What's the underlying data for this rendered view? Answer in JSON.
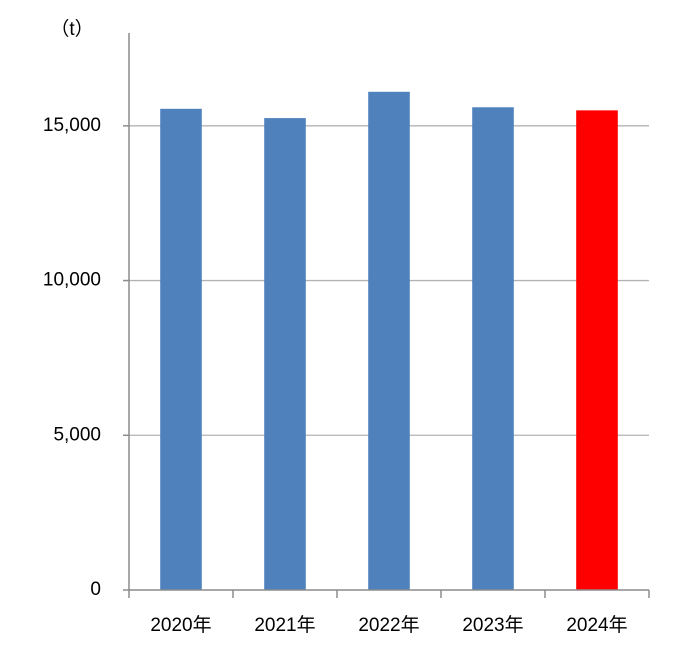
{
  "chart_data": {
    "type": "bar",
    "y_label": "（t）",
    "categories": [
      "2020年",
      "2021年",
      "2022年",
      "2023年",
      "2024年"
    ],
    "values": [
      15550,
      15250,
      16100,
      15600,
      15500
    ],
    "colors": [
      "#4f81bd",
      "#4f81bd",
      "#4f81bd",
      "#4f81bd",
      "#ff0000"
    ],
    "ylim": [
      0,
      18000
    ],
    "yticks": [
      0,
      {
        "value": 5000,
        "label": "5,000"
      },
      {
        "value": 10000,
        "label": "10,000"
      },
      {
        "value": 15000,
        "label": "15,000"
      }
    ],
    "grid": true
  }
}
